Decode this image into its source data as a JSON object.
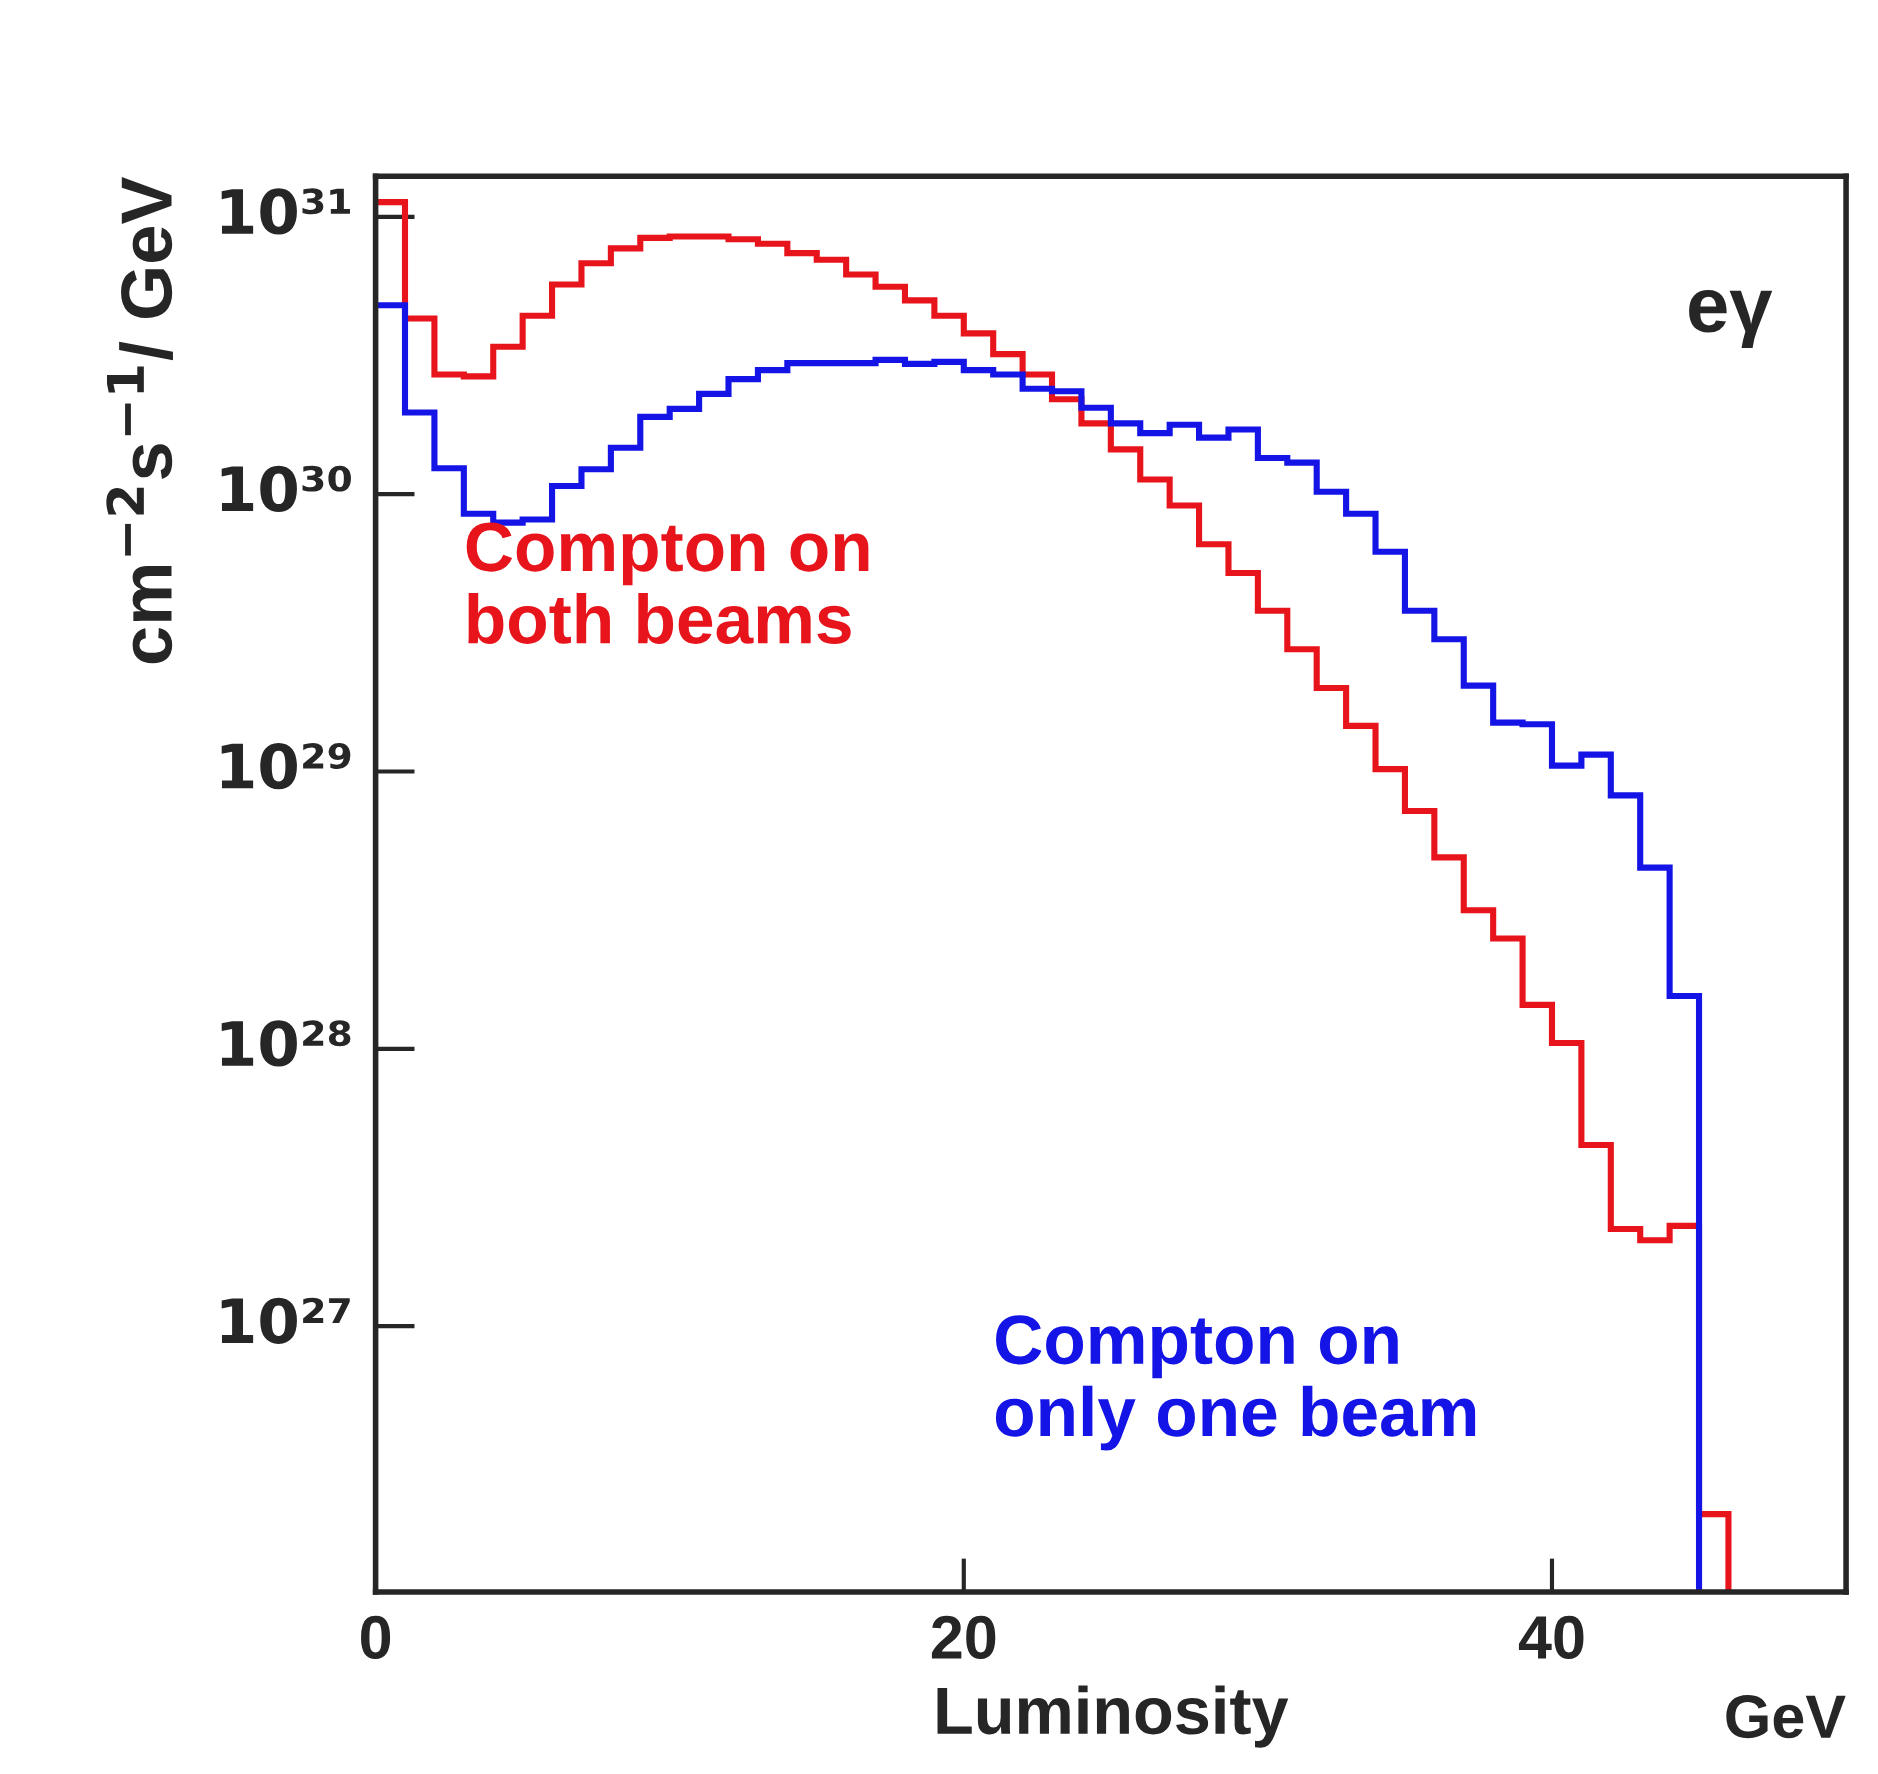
{
  "chart_data": {
    "type": "histogram",
    "xlabel": "GeV",
    "ylabel": "cm$^{−2}$s$^{−1}$/ GeV",
    "annotations": [
      "eγ",
      "Luminosity"
    ],
    "bins": [
      0,
      1,
      2,
      3,
      4,
      5,
      6,
      7,
      8,
      9,
      10,
      11,
      12,
      13,
      14,
      15,
      16,
      17,
      18,
      19,
      20,
      21,
      22,
      23,
      24,
      25,
      26,
      27,
      28,
      29,
      30,
      31,
      32,
      33,
      34,
      35,
      36,
      37,
      38,
      39,
      40,
      41,
      42,
      43,
      44,
      45,
      46
    ],
    "series": [
      {
        "name": "Compton on\nboth beams",
        "color": "#e8141c",
        "values": [
          1.13e+31,
          4.3e+30,
          2.7e+30,
          2.66e+30,
          3.4e+30,
          4.4e+30,
          5.7e+30,
          6.8e+30,
          7.7e+30,
          8.4e+30,
          8.5e+30,
          8.5e+30,
          8.3e+30,
          8e+30,
          7.4e+30,
          7e+30,
          6.2e+30,
          5.6e+30,
          5e+30,
          4.4e+30,
          3.8e+30,
          3.2e+30,
          2.7e+30,
          2.2e+30,
          1.8e+30,
          1.45e+30,
          1.13e+30,
          9.1e+29,
          6.6e+29,
          5.2e+29,
          3.8e+29,
          2.76e+29,
          2e+29,
          1.46e+29,
          1.02e+29,
          7.2e+28,
          4.9e+28,
          3.16e+28,
          2.5e+28,
          1.44e+28,
          1.05e+28,
          4.5e+27,
          2.24e+27,
          2.04e+27,
          2.3e+27,
          2.1e+26
        ]
      },
      {
        "name": "Compton on\nonly one beam",
        "color": "#1414e6",
        "bins": [
          0,
          1,
          2,
          3,
          4,
          5,
          6,
          7,
          8,
          9,
          10,
          11,
          12,
          13,
          14,
          15,
          16,
          17,
          18,
          19,
          20,
          21,
          22,
          23,
          24,
          25,
          26,
          27,
          28,
          29,
          30,
          31,
          32,
          33,
          34,
          35,
          36,
          37,
          38,
          39,
          40,
          41,
          42,
          43,
          44,
          45
        ],
        "values": [
          4.8e+30,
          1.97e+30,
          1.24e+30,
          8.5e+29,
          7.9e+29,
          8.1e+29,
          1.07e+30,
          1.23e+30,
          1.47e+30,
          1.9e+30,
          2.03e+30,
          2.3e+30,
          2.6e+30,
          2.8e+30,
          2.97e+30,
          2.97e+30,
          2.97e+30,
          3.05e+30,
          2.95e+30,
          3e+30,
          2.8e+30,
          2.7e+30,
          2.4e+30,
          2.35e+30,
          2.05e+30,
          1.8e+30,
          1.66e+30,
          1.78e+30,
          1.6e+30,
          1.71e+30,
          1.35e+30,
          1.3e+30,
          1.02e+30,
          8.5e+29,
          6.2e+29,
          3.8e+29,
          3e+29,
          2.04e+29,
          1.5e+29,
          1.48e+29,
          1.05e+29,
          1.15e+29,
          8.2e+28,
          4.5e+28,
          1.55e+28
        ]
      }
    ],
    "log": "y",
    "xlim": [
      0,
      50
    ],
    "xticks": [
      0,
      20,
      40
    ],
    "ylim": [
      1.1e+26,
      1.4e+31
    ],
    "yticks": [
      {
        "value": 1e+27,
        "label": "10²⁷"
      },
      {
        "value": 1e+28,
        "label": "10²⁸"
      },
      {
        "value": 1e+29,
        "label": "10²⁹"
      },
      {
        "value": 1e+30,
        "label": "10³⁰"
      },
      {
        "value": 1e+31,
        "label": "10³¹"
      }
    ],
    "grid": false,
    "legend": false
  }
}
